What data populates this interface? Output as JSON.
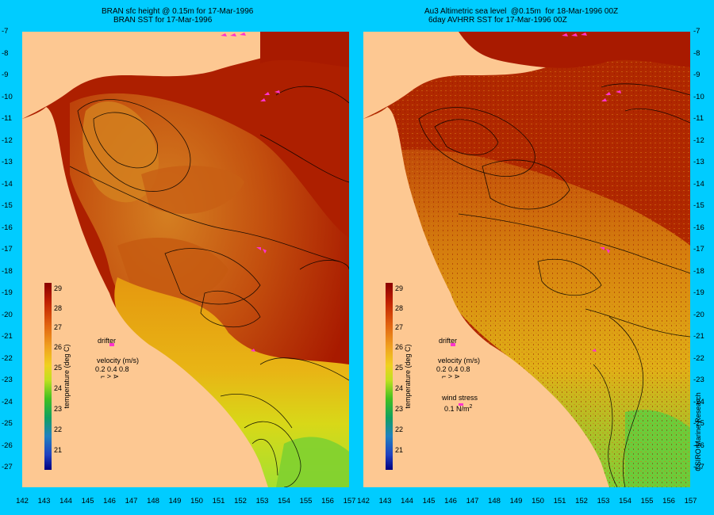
{
  "left_panel": {
    "title_line1": "BRAN sfc height @ 0.15m for 17-Mar-1996",
    "title_line2": "BRAN SST for 17-Mar-1996",
    "legend": {
      "drifter": "drifter",
      "velocity": "velocity (m/s)",
      "velocity_scale": "0.2 0.4 0.8",
      "colorbar_label": "temperature (deg C)"
    }
  },
  "right_panel": {
    "title_line1": "Au3 Altimetric sea level  @0.15m  for 18-Mar-1996 00Z",
    "title_line2": "6day AVHRR SST for 17-Mar-1996 00Z",
    "legend": {
      "drifter": "drifter",
      "velocity": "velocity (m/s)",
      "velocity_scale": "0.2 0.4 0.8",
      "wind_stress": "wind stress",
      "wind_value": "0.1 N/m",
      "wind_exp": "2",
      "colorbar_label": "temperature (deg C)"
    },
    "credit": "CSIRO Marine Research"
  },
  "axes": {
    "y_ticks": [
      "-7",
      "-8",
      "-9",
      "-10",
      "-11",
      "-12",
      "-13",
      "-14",
      "-15",
      "-16",
      "-17",
      "-18",
      "-19",
      "-20",
      "-21",
      "-22",
      "-23",
      "-24",
      "-25",
      "-26",
      "-27"
    ],
    "x_ticks": [
      "142",
      "143",
      "144",
      "145",
      "146",
      "147",
      "148",
      "149",
      "150",
      "151",
      "152",
      "153",
      "154",
      "155",
      "156",
      "157"
    ],
    "x_ticks_right": [
      "142",
      "143",
      "144",
      "145",
      "146",
      "147",
      "148",
      "149",
      "150",
      "151",
      "152",
      "153",
      "154",
      "155",
      "156",
      "157"
    ]
  },
  "colorbar": {
    "ticks": [
      "29",
      "28",
      "27",
      "26",
      "25",
      "24",
      "23",
      "22",
      "21"
    ]
  },
  "colors": {
    "background": "#00ccff",
    "land": "#fdc892",
    "warm": "#b01a00",
    "mid": "#e07a10",
    "cool": "#c8e020",
    "drifter": "#ff33cc"
  }
}
